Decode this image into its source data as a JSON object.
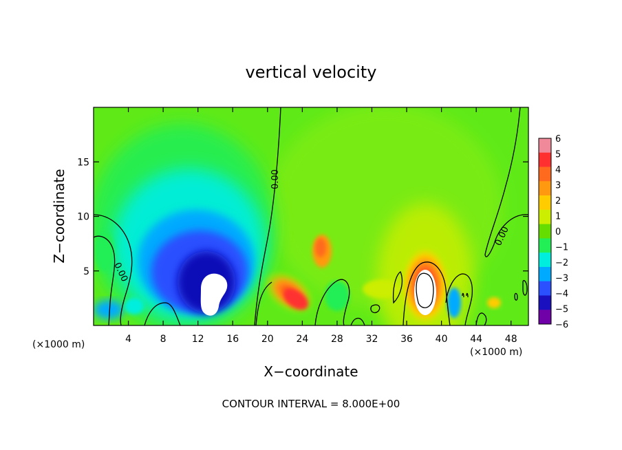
{
  "chart_data": {
    "type": "heatmap",
    "title": "vertical velocity",
    "xlabel": "X−coordinate",
    "ylabel": "Z−coordinate",
    "x_unit_left": "(×1000 m)",
    "x_unit_right": "(×1000 m)",
    "footer": "CONTOUR INTERVAL = 8.000E+00",
    "xlim": [
      0,
      50
    ],
    "ylim": [
      0,
      20
    ],
    "x_ticks": [
      4,
      8,
      12,
      16,
      20,
      24,
      28,
      32,
      36,
      40,
      44,
      48
    ],
    "y_ticks": [
      5,
      10,
      15
    ],
    "contour_label": "0.00",
    "colorbar": {
      "ticks": [
        "6",
        "5",
        "4",
        "3",
        "2",
        "1",
        "0",
        "−1",
        "−2",
        "−3",
        "−4",
        "−5",
        "−6"
      ],
      "values": [
        6,
        5,
        4,
        3,
        2,
        1,
        0,
        -1,
        -2,
        -3,
        -4,
        -5,
        -6
      ],
      "colors": [
        "#f08a9a",
        "#ff3030",
        "#ff6a1e",
        "#ff9a10",
        "#ffcc00",
        "#ccee00",
        "#66dd00",
        "#22ee55",
        "#00eedd",
        "#00aaff",
        "#2a50ff",
        "#1a10c0",
        "#7000a8"
      ]
    },
    "features": [
      {
        "kind": "downdraft",
        "x": 13.5,
        "z": 3.0,
        "value": -6
      },
      {
        "kind": "updraft",
        "x": 37.8,
        "z": 3.2,
        "value": 6
      },
      {
        "kind": "updraft",
        "x": 23.0,
        "z": 2.2,
        "value": 4
      },
      {
        "kind": "updraft",
        "x": 26.5,
        "z": 6.5,
        "value": 3
      }
    ]
  }
}
